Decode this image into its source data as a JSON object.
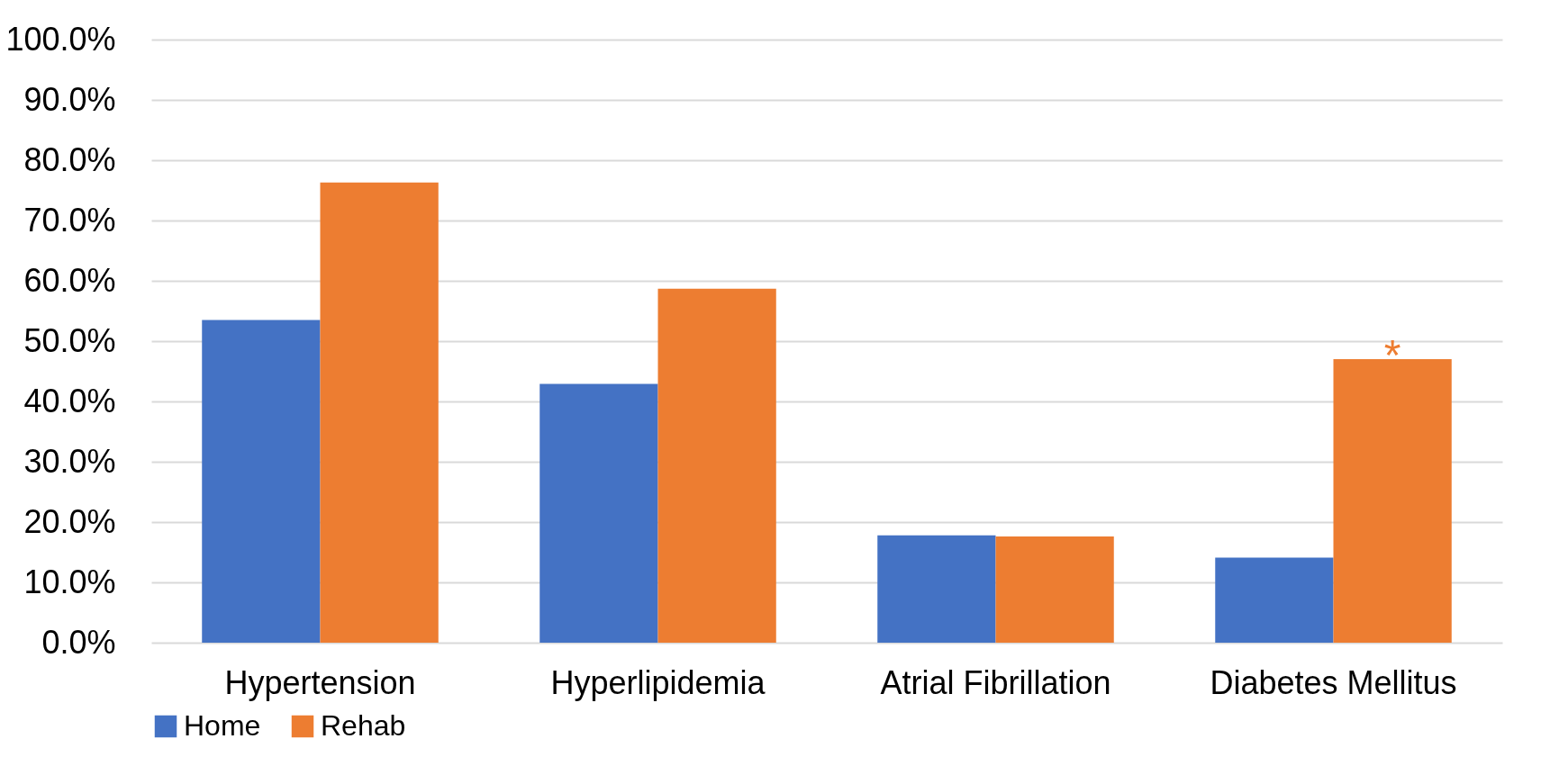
{
  "chart_data": {
    "type": "bar",
    "categories": [
      "Hypertension",
      "Hyperlipidemia",
      "Atrial Fibrillation",
      "Diabetes Mellitus"
    ],
    "series": [
      {
        "name": "Home",
        "color": "#4472c4",
        "values": [
          53.5,
          42.9,
          17.8,
          14.1
        ]
      },
      {
        "name": "Rehab",
        "color": "#ed7d31",
        "values": [
          76.3,
          58.7,
          17.6,
          47.0
        ]
      }
    ],
    "ylim": [
      0,
      100
    ],
    "yticks": [
      {
        "value": 0,
        "label": "0.0%"
      },
      {
        "value": 10,
        "label": "10.0%"
      },
      {
        "value": 20,
        "label": "20.0%"
      },
      {
        "value": 30,
        "label": "30.0%"
      },
      {
        "value": 40,
        "label": "40.0%"
      },
      {
        "value": 50,
        "label": "50.0%"
      },
      {
        "value": 60,
        "label": "60.0%"
      },
      {
        "value": 70,
        "label": "70.0%"
      },
      {
        "value": 80,
        "label": "80.0%"
      },
      {
        "value": 90,
        "label": "90.0%"
      },
      {
        "value": 100,
        "label": "100.0%"
      }
    ],
    "annotations": [
      {
        "text": "*",
        "x": "Diabetes Mellitus",
        "y": 47.0
      }
    ],
    "grid": "y",
    "legend": "bottom"
  }
}
